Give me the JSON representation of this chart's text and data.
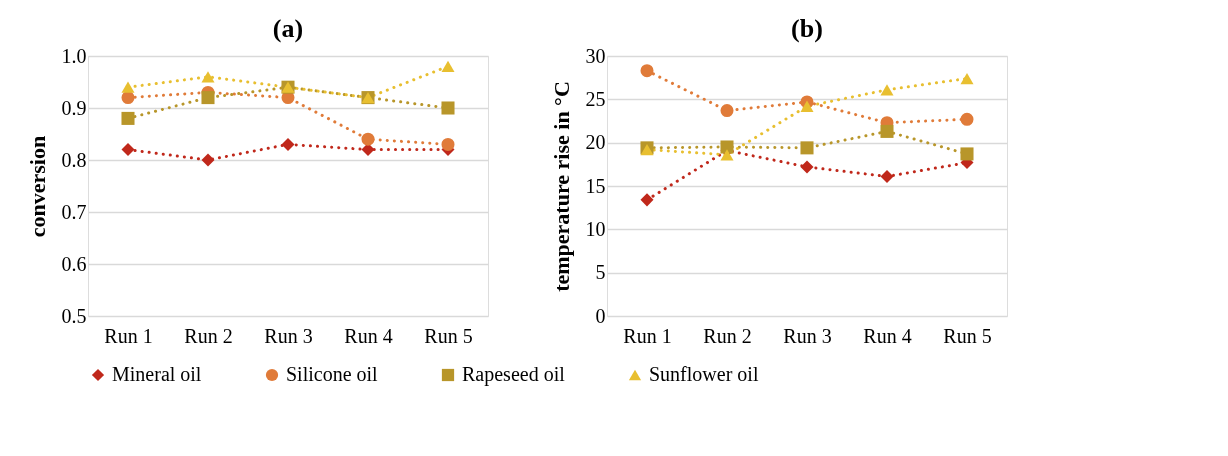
{
  "chart_data": [
    {
      "type": "line",
      "title": "(a)",
      "ylabel": "conversion",
      "categories": [
        "Run 1",
        "Run 2",
        "Run 3",
        "Run 4",
        "Run 5"
      ],
      "ylim": [
        0.5,
        1.0
      ],
      "yticks": [
        {
          "value": 0.5,
          "label": "0.5"
        },
        {
          "value": 0.6,
          "label": "0.6"
        },
        {
          "value": 0.7,
          "label": "0.7"
        },
        {
          "value": 0.8,
          "label": "0.8"
        },
        {
          "value": 0.9,
          "label": "0.9"
        },
        {
          "value": 1.0,
          "label": "1.0"
        }
      ],
      "grid": "y",
      "legend": "bottom",
      "line_style": "dotted",
      "series": [
        {
          "name": "Mineral oil",
          "color": "#c0281b",
          "marker": "diamond",
          "values": [
            0.82,
            0.8,
            0.83,
            0.82,
            0.82
          ]
        },
        {
          "name": "Silicone oil",
          "color": "#e07b39",
          "marker": "circle",
          "values": [
            0.92,
            0.93,
            0.92,
            0.84,
            0.83
          ]
        },
        {
          "name": "Rapeseed oil",
          "color": "#b8962a",
          "marker": "square",
          "values": [
            0.88,
            0.92,
            0.94,
            0.92,
            0.9
          ]
        },
        {
          "name": "Sunflower oil",
          "color": "#e8bf30",
          "marker": "triangle",
          "values": [
            0.94,
            0.96,
            0.94,
            0.92,
            0.98
          ]
        }
      ]
    },
    {
      "type": "line",
      "title": "(b)",
      "ylabel": "temperature rise in  °C",
      "categories": [
        "Run 1",
        "Run 2",
        "Run 3",
        "Run 4",
        "Run 5"
      ],
      "ylim": [
        0,
        30
      ],
      "yticks": [
        0,
        5,
        10,
        15,
        20,
        25,
        30
      ],
      "grid": "y",
      "legend": "bottom",
      "line_style": "dotted",
      "series": [
        {
          "name": "Mineral oil",
          "color": "#c0281b",
          "marker": "diamond",
          "values": [
            13.4,
            19.1,
            17.2,
            16.1,
            17.7
          ]
        },
        {
          "name": "Silicone oil",
          "color": "#e07b39",
          "marker": "circle",
          "values": [
            28.3,
            23.7,
            24.7,
            22.3,
            22.7
          ]
        },
        {
          "name": "Rapeseed oil",
          "color": "#b8962a",
          "marker": "square",
          "values": [
            19.4,
            19.5,
            19.4,
            21.3,
            18.7
          ]
        },
        {
          "name": "Sunflower oil",
          "color": "#e8bf30",
          "marker": "triangle",
          "values": [
            19.2,
            18.6,
            24.2,
            26.1,
            27.4
          ]
        }
      ]
    }
  ]
}
